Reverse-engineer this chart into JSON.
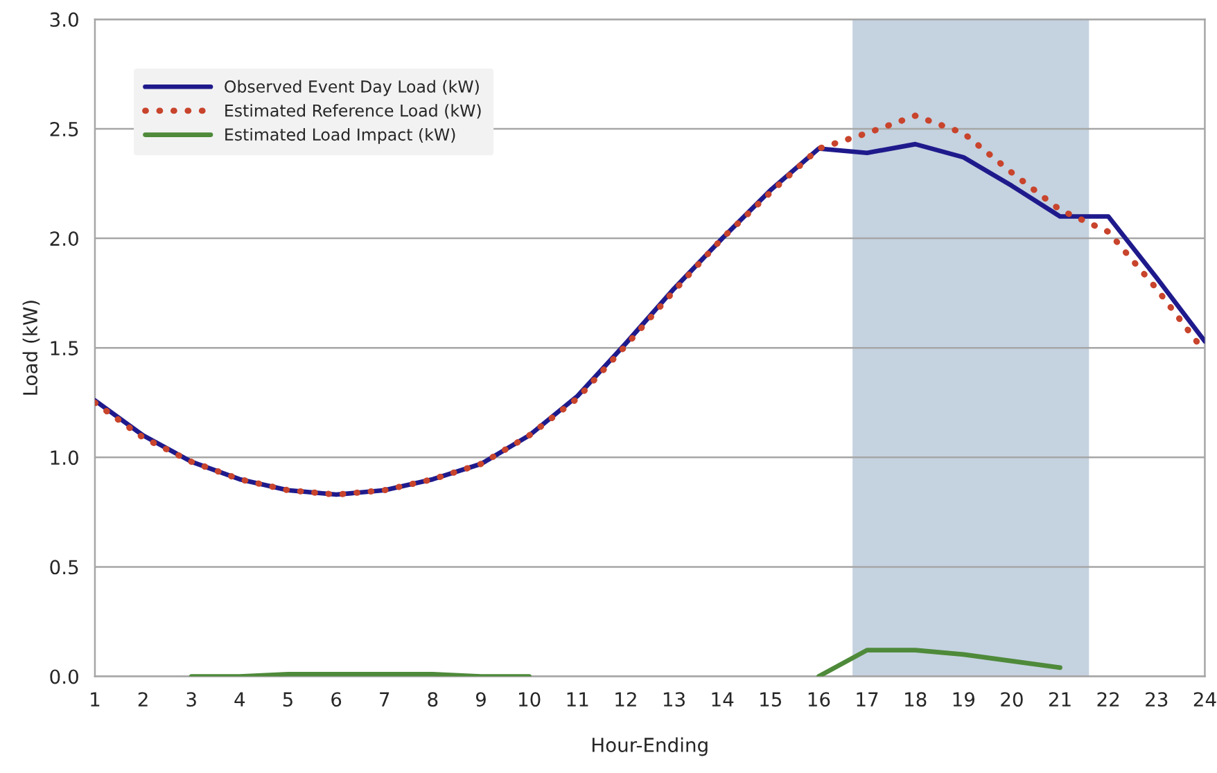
{
  "chart_data": {
    "type": "line",
    "xlabel": "Hour-Ending",
    "ylabel": "Load (kW)",
    "x": [
      1,
      2,
      3,
      4,
      5,
      6,
      7,
      8,
      9,
      10,
      11,
      12,
      13,
      14,
      15,
      16,
      17,
      18,
      19,
      20,
      21,
      22,
      23,
      24
    ],
    "series": [
      {
        "name": "Observed Event Day Load (kW)",
        "color": "#1f1a8c",
        "line_style": "solid",
        "values": [
          1.26,
          1.1,
          0.98,
          0.9,
          0.85,
          0.83,
          0.85,
          0.9,
          0.97,
          1.1,
          1.28,
          1.52,
          1.77,
          2.0,
          2.22,
          2.41,
          2.39,
          2.43,
          2.37,
          2.24,
          2.1,
          2.1,
          1.82,
          1.53
        ]
      },
      {
        "name": "Estimated Reference Load (kW)",
        "color": "#c8442c",
        "line_style": "dotted",
        "values": [
          1.25,
          1.09,
          0.98,
          0.9,
          0.85,
          0.83,
          0.85,
          0.9,
          0.97,
          1.1,
          1.27,
          1.51,
          1.76,
          2.0,
          2.21,
          2.41,
          2.48,
          2.56,
          2.48,
          2.3,
          2.13,
          2.03,
          1.77,
          1.48
        ]
      },
      {
        "name": "Estimated Load Impact (kW)",
        "color": "#4e8a3a",
        "line_style": "solid",
        "values": [
          null,
          null,
          0.0,
          0.0,
          0.01,
          0.01,
          0.01,
          0.01,
          0.0,
          0.0,
          null,
          null,
          null,
          null,
          null,
          0.0,
          0.12,
          0.12,
          0.1,
          0.07,
          0.04,
          null,
          null,
          null
        ]
      }
    ],
    "bands": [
      {
        "axis": "x",
        "from": 16.7,
        "to": 21.6,
        "color": "#c5d2e0"
      }
    ],
    "xlim": [
      1,
      24
    ],
    "xticks": [
      1,
      2,
      3,
      4,
      5,
      6,
      7,
      8,
      9,
      10,
      11,
      12,
      13,
      14,
      15,
      16,
      17,
      18,
      19,
      20,
      21,
      22,
      23,
      24
    ],
    "ylim": [
      0,
      3.0
    ],
    "yticks": [
      {
        "value": 0,
        "label": "0.0"
      },
      {
        "value": 0.5,
        "label": "0.5"
      },
      {
        "value": 1.0,
        "label": "1.0"
      },
      {
        "value": 1.5,
        "label": "1.5"
      },
      {
        "value": 2.0,
        "label": "2.0"
      },
      {
        "value": 2.5,
        "label": "2.5"
      },
      {
        "value": 3.0,
        "label": "3.0"
      }
    ],
    "grid": "y",
    "legend": "upper left",
    "marker": "none"
  }
}
